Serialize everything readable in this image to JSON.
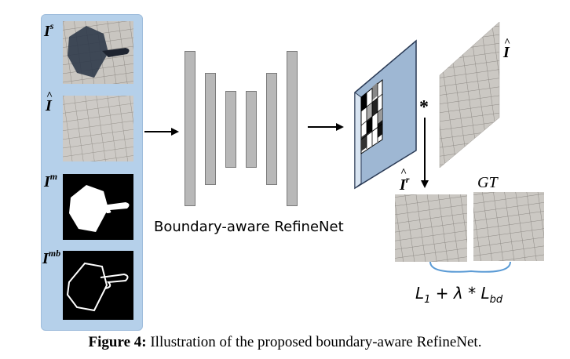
{
  "inputs": [
    {
      "symbol": "I",
      "sup": "s",
      "hat": false,
      "kind": "shadow-image"
    },
    {
      "symbol": "I",
      "sup": "",
      "hat": true,
      "kind": "target-image"
    },
    {
      "symbol": "I",
      "sup": "m",
      "hat": false,
      "kind": "mask"
    },
    {
      "symbol": "I",
      "sup": "mb",
      "hat": false,
      "kind": "mask-boundary"
    }
  ],
  "network_label": "Boundary-aware RefineNet",
  "multiply_symbol": "*",
  "output_image_label": {
    "symbol": "I",
    "hat": true
  },
  "result_label": {
    "symbol": "I",
    "sup": "r",
    "hat": true
  },
  "gt_label": "GT",
  "loss": {
    "l1": "L",
    "l1_sub": "1",
    "plus": "+",
    "lambda": "λ",
    "times": "*",
    "lbd": "L",
    "lbd_sub": "bd"
  },
  "caption": {
    "bold": "Figure 4:",
    "text": " Illustration of the proposed boundary-aware RefineNet."
  },
  "colors": {
    "panel": "#b5d0ea",
    "block": "#b8b8b8",
    "feature_map": "#9eb7d3",
    "bracket": "#5b9bd5"
  }
}
